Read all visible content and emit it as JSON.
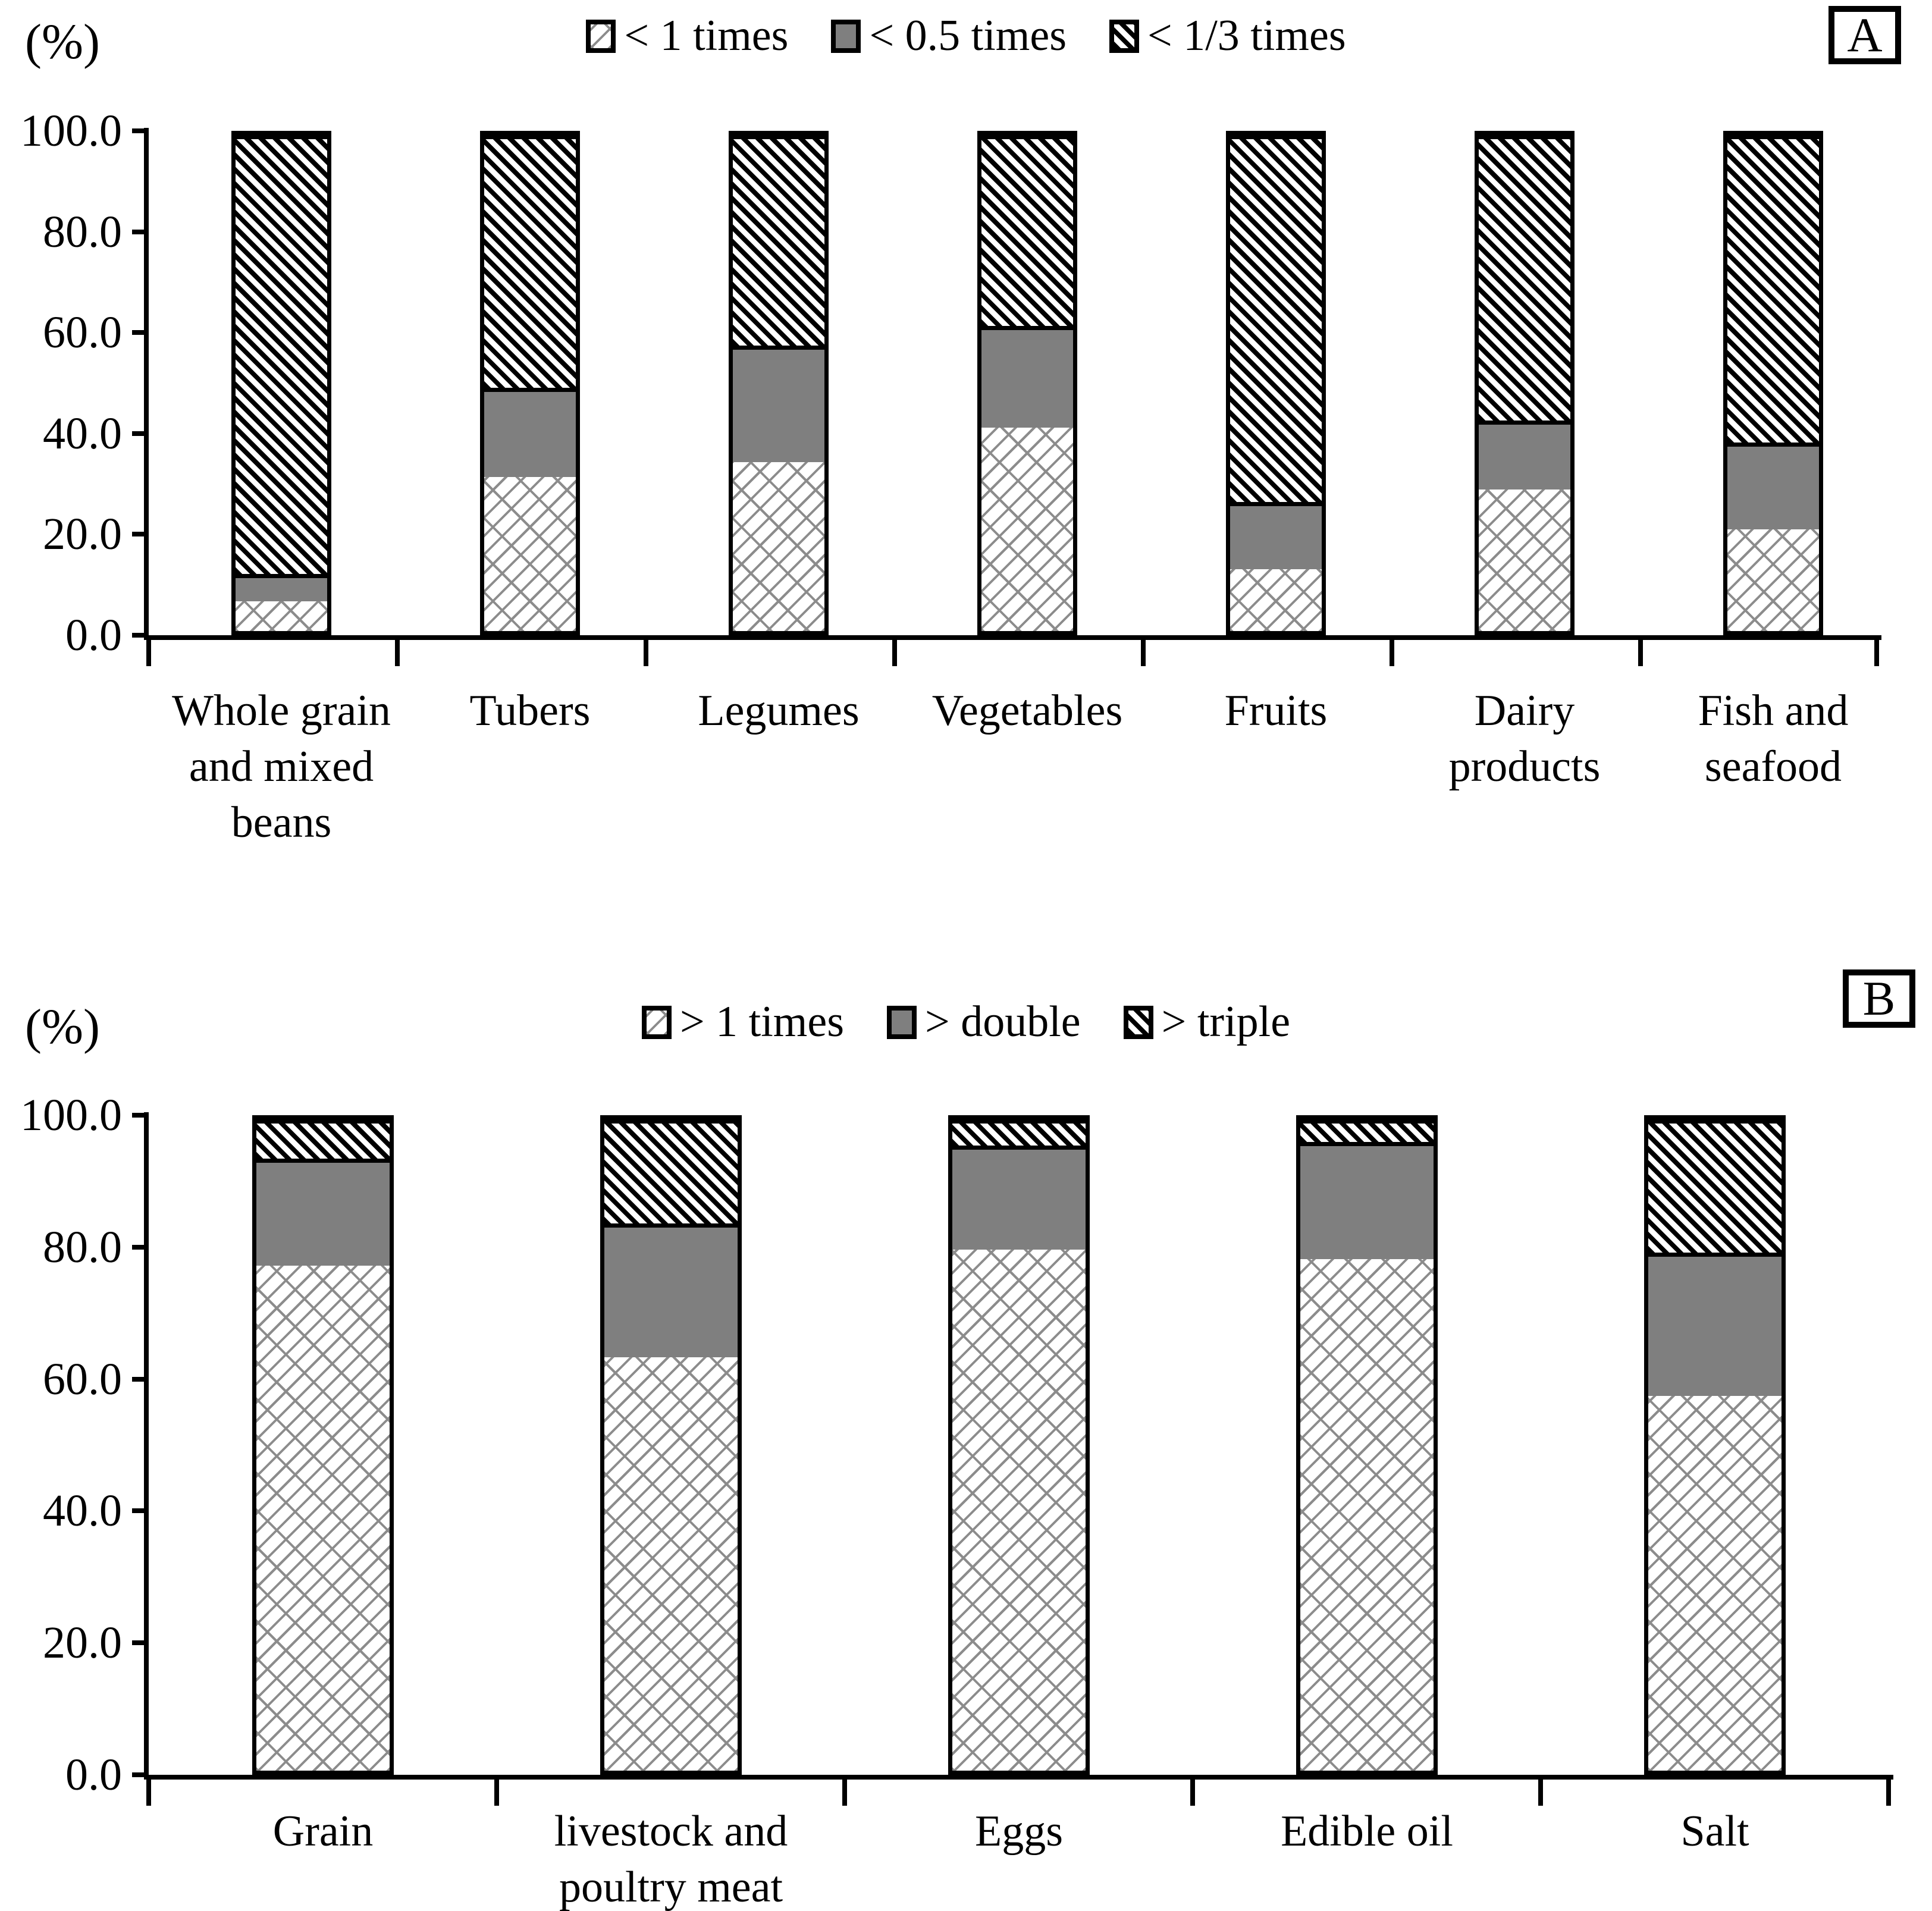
{
  "colors": {
    "segment_gray": "#7f7f7f",
    "pattern_line": "#8c8c8c",
    "stripe_black": "#000000",
    "background": "#ffffff",
    "axis": "#000000"
  },
  "chart_data": [
    {
      "panel_letter": "A",
      "unit_label": "(%)",
      "type": "bar",
      "subtype": "stacked-100-percent",
      "legend_position": "top-center",
      "grid": false,
      "ylim": [
        0,
        100
      ],
      "ytick_step": 20,
      "yticks": [
        "0.0",
        "20.0",
        "40.0",
        "60.0",
        "80.0",
        "100.0"
      ],
      "categories": [
        "Whole grain and mixed beans",
        "Tubers",
        "Legumes",
        "Vegetables",
        "Fruits",
        "Dairy products",
        "Fish and seafood"
      ],
      "series": [
        {
          "name": "< 1 times",
          "pattern": "brick",
          "values": [
            6.0,
            31.0,
            34.0,
            41.0,
            12.5,
            28.5,
            20.5
          ]
        },
        {
          "name": "< 0.5 times",
          "pattern": "solid-gray",
          "values": [
            5.5,
            18.0,
            23.5,
            20.5,
            13.5,
            14.0,
            17.5
          ]
        },
        {
          "name": "< 1/3 times",
          "pattern": "stripe",
          "values": [
            88.5,
            51.0,
            42.5,
            38.5,
            74.0,
            57.5,
            62.0
          ]
        }
      ]
    },
    {
      "panel_letter": "B",
      "unit_label": "(%)",
      "type": "bar",
      "subtype": "stacked-100-percent",
      "legend_position": "top-center",
      "grid": false,
      "ylim": [
        0,
        100
      ],
      "ytick_step": 20,
      "yticks": [
        "0.0",
        "20.0",
        "40.0",
        "60.0",
        "80.0",
        "100.0"
      ],
      "categories": [
        "Grain",
        "livestock and poultry meat",
        "Eggs",
        "Edible oil",
        "Salt"
      ],
      "series": [
        {
          "name": "> 1 times",
          "pattern": "brick",
          "values": [
            77.5,
            63.5,
            80.0,
            78.5,
            57.5
          ]
        },
        {
          "name": "> double",
          "pattern": "solid-gray",
          "values": [
            16.5,
            20.5,
            16.0,
            18.0,
            22.0
          ]
        },
        {
          "name": "> triple",
          "pattern": "stripe",
          "values": [
            6.0,
            16.0,
            4.0,
            3.5,
            20.5
          ]
        }
      ]
    }
  ]
}
